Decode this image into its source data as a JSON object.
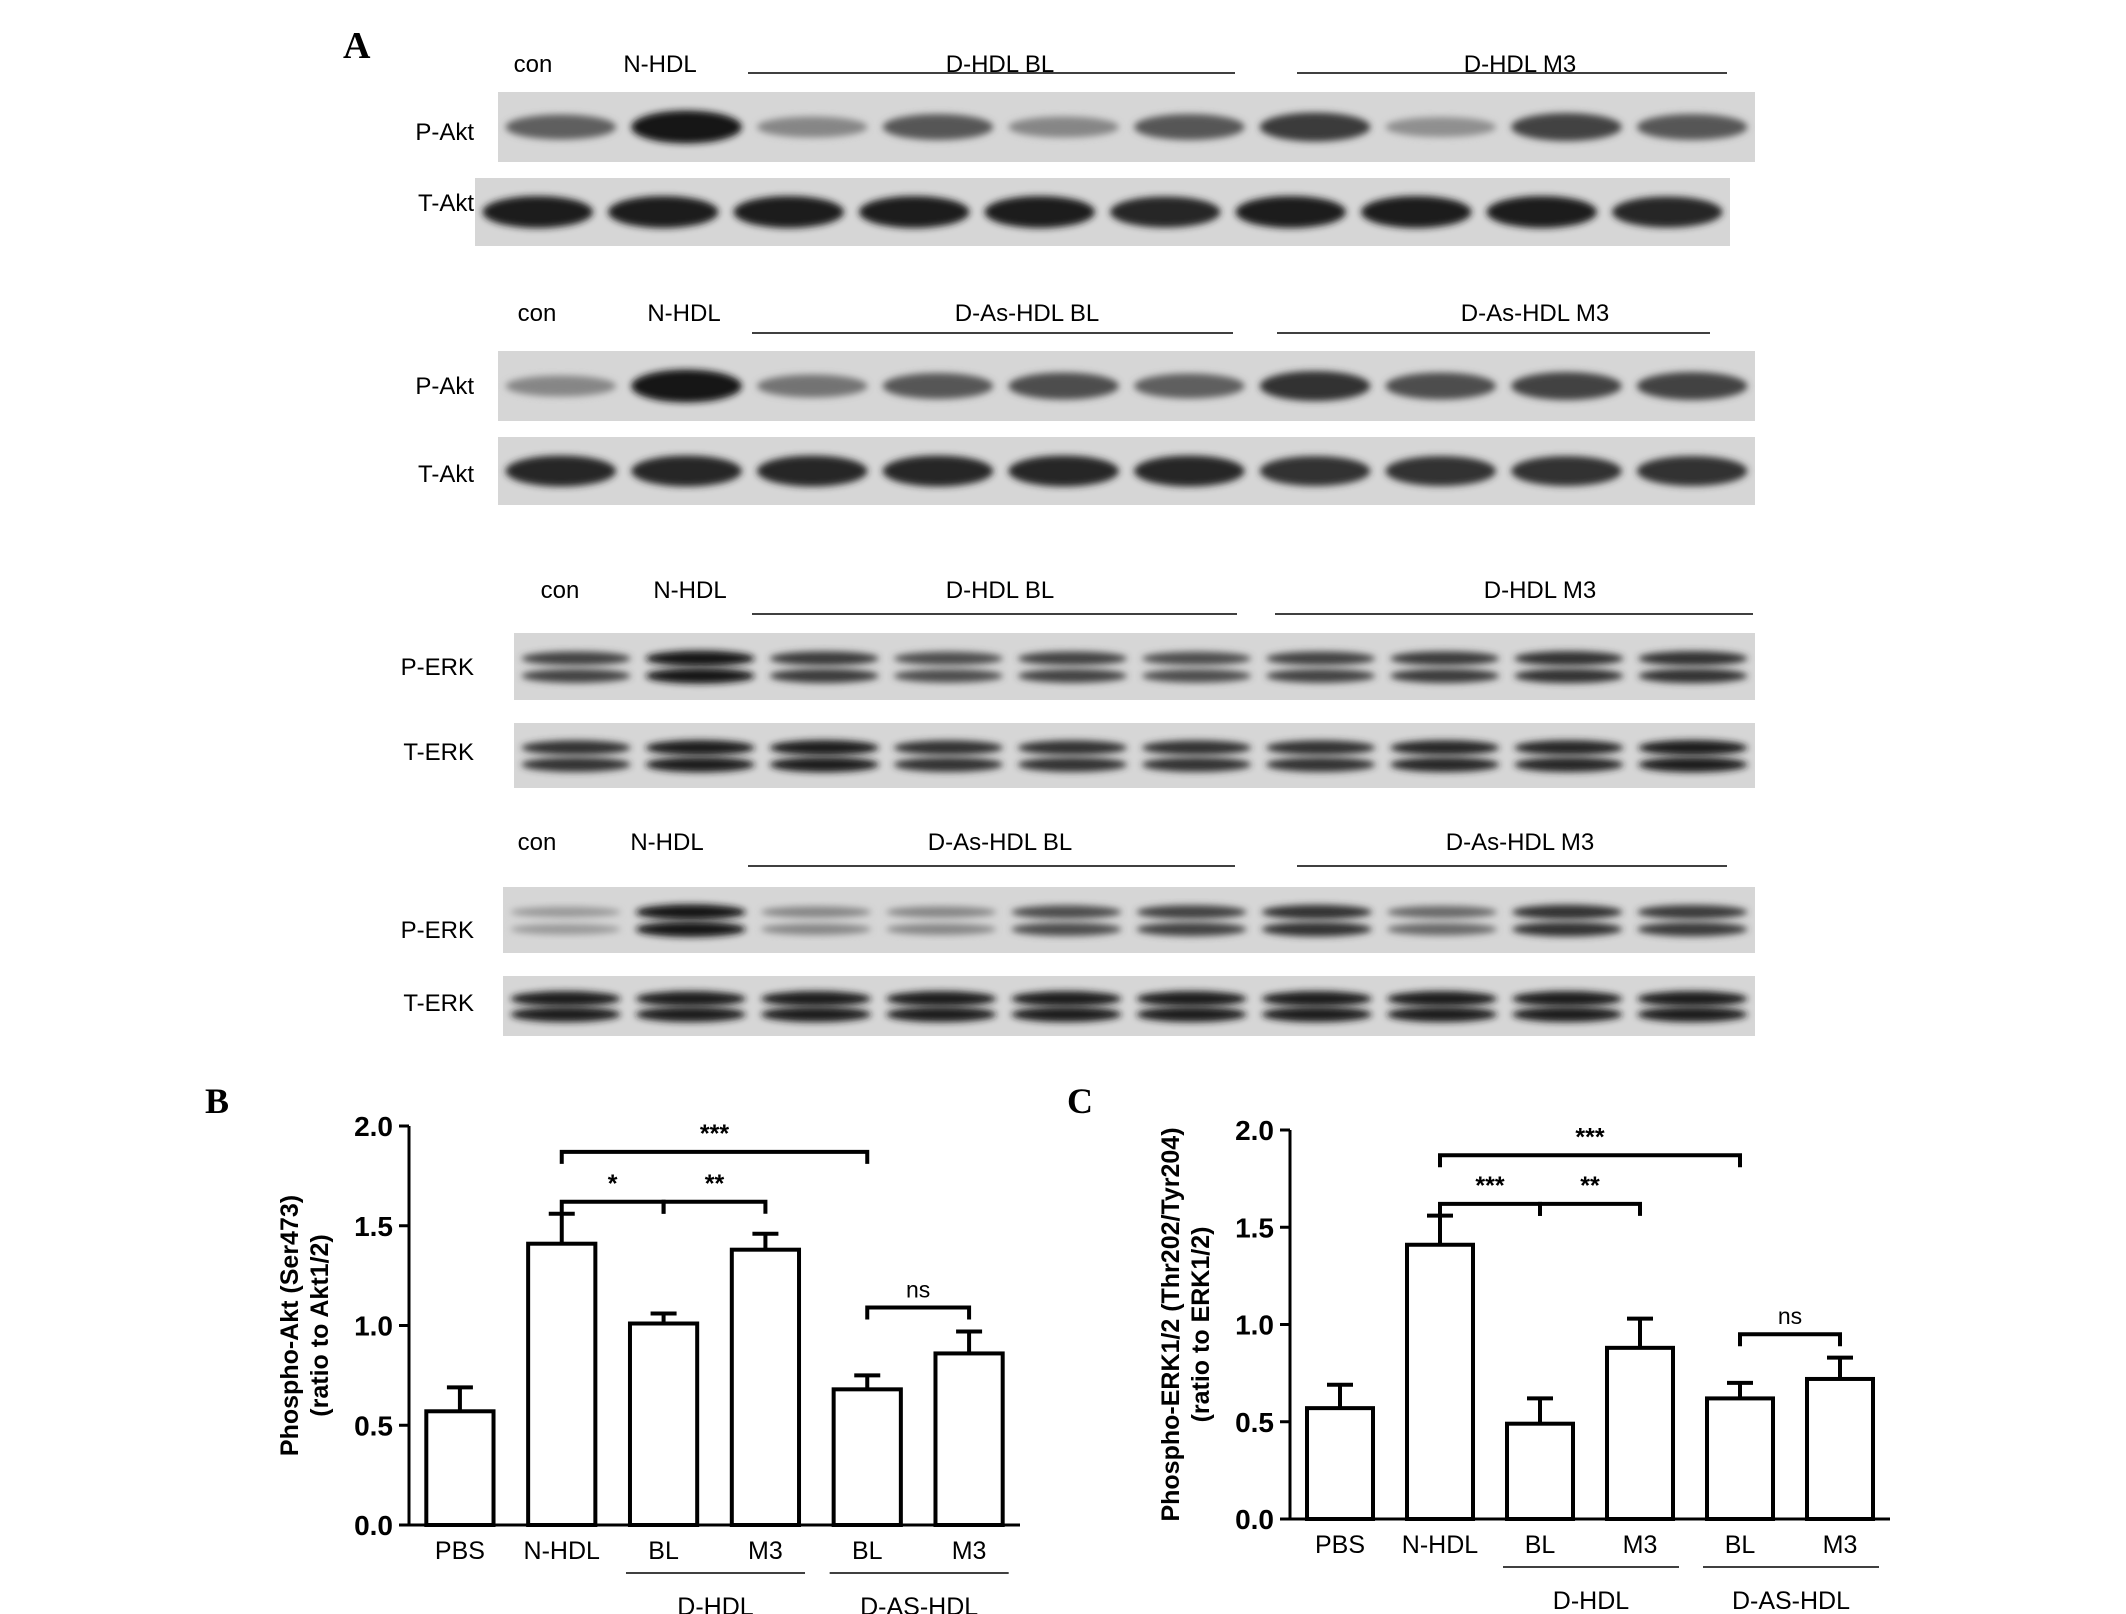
{
  "panel_labels": {
    "a": "A",
    "b": "B",
    "c": "C"
  },
  "blots": [
    {
      "groups": [
        "con",
        "N-HDL",
        "D-HDL BL",
        "D-HDL M3"
      ],
      "rows": [
        {
          "label": "P-Akt",
          "intensity": [
            0.55,
            0.95,
            0.35,
            0.6,
            0.35,
            0.6,
            0.75,
            0.3,
            0.7,
            0.6
          ]
        },
        {
          "label": "T-Akt",
          "intensity": [
            0.9,
            0.9,
            0.9,
            0.9,
            0.9,
            0.85,
            0.9,
            0.9,
            0.9,
            0.85
          ]
        }
      ]
    },
    {
      "groups": [
        "con",
        "N-HDL",
        "D-As-HDL BL",
        "D-As-HDL M3"
      ],
      "rows": [
        {
          "label": "P-Akt",
          "intensity": [
            0.35,
            0.95,
            0.45,
            0.6,
            0.65,
            0.55,
            0.8,
            0.65,
            0.7,
            0.7
          ]
        },
        {
          "label": "T-Akt",
          "intensity": [
            0.85,
            0.85,
            0.85,
            0.85,
            0.85,
            0.85,
            0.8,
            0.8,
            0.8,
            0.8
          ]
        }
      ]
    },
    {
      "groups": [
        "con",
        "N-HDL",
        "D-HDL BL",
        "D-HDL M3"
      ],
      "rows": [
        {
          "label": "P-ERK",
          "intensity": [
            0.7,
            0.95,
            0.75,
            0.65,
            0.7,
            0.65,
            0.7,
            0.75,
            0.8,
            0.8
          ]
        },
        {
          "label": "T-ERK",
          "intensity": [
            0.8,
            0.9,
            0.9,
            0.8,
            0.8,
            0.8,
            0.8,
            0.85,
            0.85,
            0.9
          ]
        }
      ]
    },
    {
      "groups": [
        "con",
        "N-HDL",
        "D-As-HDL BL",
        "D-As-HDL M3"
      ],
      "rows": [
        {
          "label": "P-ERK",
          "intensity": [
            0.25,
            0.95,
            0.35,
            0.35,
            0.65,
            0.7,
            0.8,
            0.5,
            0.8,
            0.75
          ]
        },
        {
          "label": "T-ERK",
          "intensity": [
            0.9,
            0.9,
            0.9,
            0.9,
            0.9,
            0.9,
            0.9,
            0.9,
            0.9,
            0.9
          ]
        }
      ]
    }
  ],
  "chart_data": [
    {
      "type": "bar",
      "panel": "B",
      "ylabel": "Phospho-Akt (Ser473) (ratio to Akt1/2)",
      "ylim": [
        0,
        2.0
      ],
      "yticks": [
        "0.0",
        "0.5",
        "1.0",
        "1.5",
        "2.0"
      ],
      "categories": [
        "PBS",
        "N-HDL",
        "BL",
        "M3",
        "BL",
        "M3"
      ],
      "values": [
        0.57,
        1.41,
        1.01,
        1.38,
        0.68,
        0.86
      ],
      "errors": [
        0.12,
        0.15,
        0.05,
        0.08,
        0.07,
        0.11
      ],
      "groups": [
        {
          "label": "D-HDL",
          "from": 2,
          "to": 3
        },
        {
          "label": "D-AS-HDL",
          "from": 4,
          "to": 5
        }
      ],
      "significance": [
        {
          "from": 1,
          "to": 2,
          "label": "*",
          "y": 1.62
        },
        {
          "from": 2,
          "to": 3,
          "label": "**",
          "y": 1.62
        },
        {
          "from": 1,
          "to": 4,
          "label": "***",
          "y": 1.87
        },
        {
          "from": 4,
          "to": 5,
          "label": "ns",
          "y": 1.09
        }
      ]
    },
    {
      "type": "bar",
      "panel": "C",
      "ylabel": "Phospho-ERK1/2 (Thr202/Tyr204) (ratio to ERK1/2)",
      "ylim": [
        0,
        2.0
      ],
      "yticks": [
        "0.0",
        "0.5",
        "1.0",
        "1.5",
        "2.0"
      ],
      "categories": [
        "PBS",
        "N-HDL",
        "BL",
        "M3",
        "BL",
        "M3"
      ],
      "values": [
        0.57,
        1.41,
        0.49,
        0.88,
        0.62,
        0.72
      ],
      "errors": [
        0.12,
        0.15,
        0.13,
        0.15,
        0.08,
        0.11
      ],
      "groups": [
        {
          "label": "D-HDL",
          "from": 2,
          "to": 3
        },
        {
          "label": "D-AS-HDL",
          "from": 4,
          "to": 5
        }
      ],
      "significance": [
        {
          "from": 1,
          "to": 2,
          "label": "***",
          "y": 1.62
        },
        {
          "from": 2,
          "to": 3,
          "label": "**",
          "y": 1.62
        },
        {
          "from": 1,
          "to": 4,
          "label": "***",
          "y": 1.87
        },
        {
          "from": 4,
          "to": 5,
          "label": "ns",
          "y": 0.95
        }
      ]
    }
  ]
}
